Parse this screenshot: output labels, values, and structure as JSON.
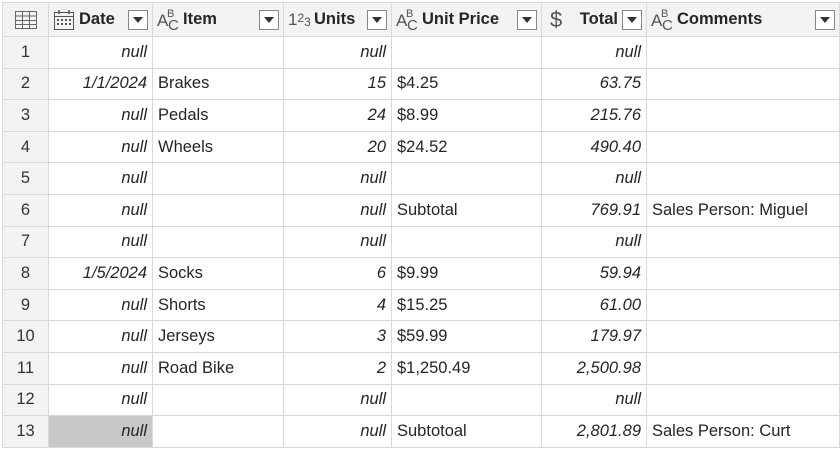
{
  "columns": [
    {
      "key": "date",
      "label": "Date",
      "type_icon": "calendar-icon"
    },
    {
      "key": "item",
      "label": "Item",
      "type_icon": "text-type-icon"
    },
    {
      "key": "units",
      "label": "Units",
      "type_icon": "whole-number-type-icon"
    },
    {
      "key": "unit_price",
      "label": "Unit Price",
      "type_icon": "text-type-icon"
    },
    {
      "key": "total",
      "label": "Total",
      "type_icon": "currency-type-icon"
    },
    {
      "key": "comments",
      "label": "Comments",
      "type_icon": "text-type-icon"
    }
  ],
  "rows": [
    {
      "n": "1",
      "date": "null",
      "item": "",
      "units": "null",
      "unit_price": "",
      "total": "null",
      "comments": ""
    },
    {
      "n": "2",
      "date": "1/1/2024",
      "item": "Brakes",
      "units": "15",
      "unit_price": "$4.25",
      "total": "63.75",
      "comments": ""
    },
    {
      "n": "3",
      "date": "null",
      "item": "Pedals",
      "units": "24",
      "unit_price": "$8.99",
      "total": "215.76",
      "comments": ""
    },
    {
      "n": "4",
      "date": "null",
      "item": "Wheels",
      "units": "20",
      "unit_price": "$24.52",
      "total": "490.40",
      "comments": ""
    },
    {
      "n": "5",
      "date": "null",
      "item": "",
      "units": "null",
      "unit_price": "",
      "total": "null",
      "comments": ""
    },
    {
      "n": "6",
      "date": "null",
      "item": "",
      "units": "null",
      "unit_price": "Subtotal",
      "total": "769.91",
      "comments": "Sales Person: Miguel"
    },
    {
      "n": "7",
      "date": "null",
      "item": "",
      "units": "null",
      "unit_price": "",
      "total": "null",
      "comments": ""
    },
    {
      "n": "8",
      "date": "1/5/2024",
      "item": "Socks",
      "units": "6",
      "unit_price": "$9.99",
      "total": "59.94",
      "comments": ""
    },
    {
      "n": "9",
      "date": "null",
      "item": "Shorts",
      "units": "4",
      "unit_price": "$15.25",
      "total": "61.00",
      "comments": ""
    },
    {
      "n": "10",
      "date": "null",
      "item": "Jerseys",
      "units": "3",
      "unit_price": "$59.99",
      "total": "179.97",
      "comments": ""
    },
    {
      "n": "11",
      "date": "null",
      "item": "Road Bike",
      "units": "2",
      "unit_price": "$1,250.49",
      "total": "2,500.98",
      "comments": ""
    },
    {
      "n": "12",
      "date": "null",
      "item": "",
      "units": "null",
      "unit_price": "",
      "total": "null",
      "comments": ""
    },
    {
      "n": "13",
      "date": "null",
      "item": "",
      "units": "null",
      "unit_price": "Subtotoal",
      "total": "2,801.89",
      "comments": "Sales Person: Curt"
    }
  ]
}
